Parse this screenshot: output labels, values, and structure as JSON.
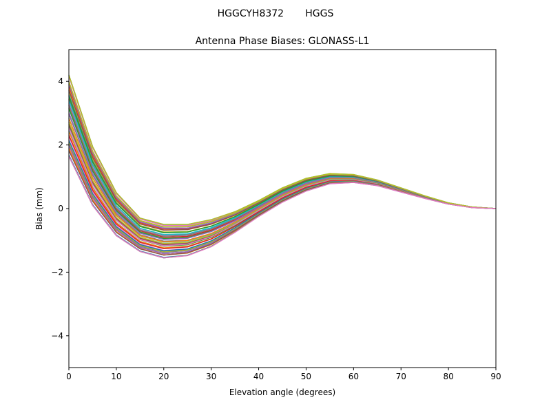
{
  "chart_data": {
    "type": "line",
    "suptitle": "HGGCYH8372       HGGS",
    "title": "Antenna Phase Biases: GLONASS-L1",
    "xlabel": "Elevation angle (degrees)",
    "ylabel": "Bias (mm)",
    "xlim": [
      0,
      90
    ],
    "ylim": [
      -5,
      5
    ],
    "xticks": [
      0,
      10,
      20,
      30,
      40,
      50,
      60,
      70,
      80,
      90
    ],
    "yticks": [
      -4,
      -2,
      0,
      2,
      4
    ],
    "x": [
      0,
      5,
      10,
      15,
      20,
      25,
      30,
      35,
      40,
      45,
      50,
      55,
      60,
      65,
      70,
      75,
      80,
      85,
      90
    ],
    "series_profiles": [
      {
        "name": "upper envelope",
        "values": [
          4.2,
          1.95,
          0.5,
          -0.3,
          -0.5,
          -0.5,
          -0.35,
          -0.1,
          0.25,
          0.65,
          0.95,
          1.1,
          1.07,
          0.9,
          0.65,
          0.4,
          0.18,
          0.05,
          0.0
        ]
      },
      {
        "name": "lower envelope",
        "values": [
          1.65,
          0.1,
          -0.85,
          -1.35,
          -1.55,
          -1.48,
          -1.2,
          -0.75,
          -0.25,
          0.2,
          0.55,
          0.78,
          0.82,
          0.72,
          0.52,
          0.32,
          0.14,
          0.03,
          0.0
        ]
      }
    ],
    "series_count": 40,
    "colors": [
      "#1f77b4",
      "#ff7f0e",
      "#2ca02c",
      "#d62728",
      "#9467bd",
      "#8c564b",
      "#e377c2",
      "#7f7f7f",
      "#bcbd22",
      "#17becf"
    ]
  }
}
